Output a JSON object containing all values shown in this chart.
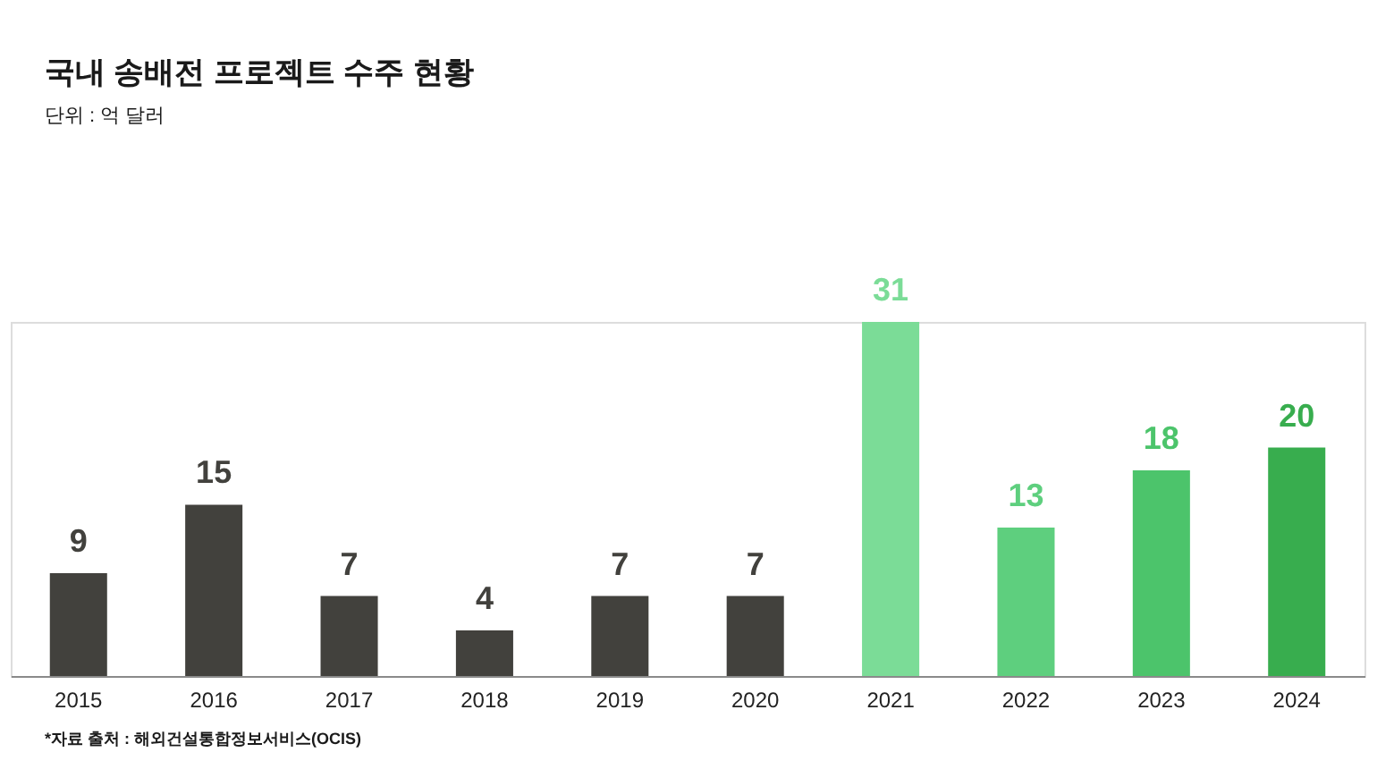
{
  "chart_data": {
    "type": "bar",
    "title": "국내 송배전 프로젝트 수주 현황",
    "subtitle": "단위 : 억 달러",
    "categories": [
      "2015",
      "2016",
      "2017",
      "2018",
      "2019",
      "2020",
      "2021",
      "2022",
      "2023",
      "2024"
    ],
    "values": [
      9,
      15,
      7,
      4,
      7,
      7,
      31,
      13,
      18,
      20
    ],
    "colors": [
      "#42413d",
      "#42413d",
      "#42413d",
      "#42413d",
      "#42413d",
      "#42413d",
      "#7bdc97",
      "#5ecf7e",
      "#4cc46b",
      "#38ad4e"
    ],
    "data_labels": true,
    "tick_labels": "x",
    "annotations": [
      "*자료 출처 : 해외건설통합정보서비스(OCIS)"
    ]
  }
}
